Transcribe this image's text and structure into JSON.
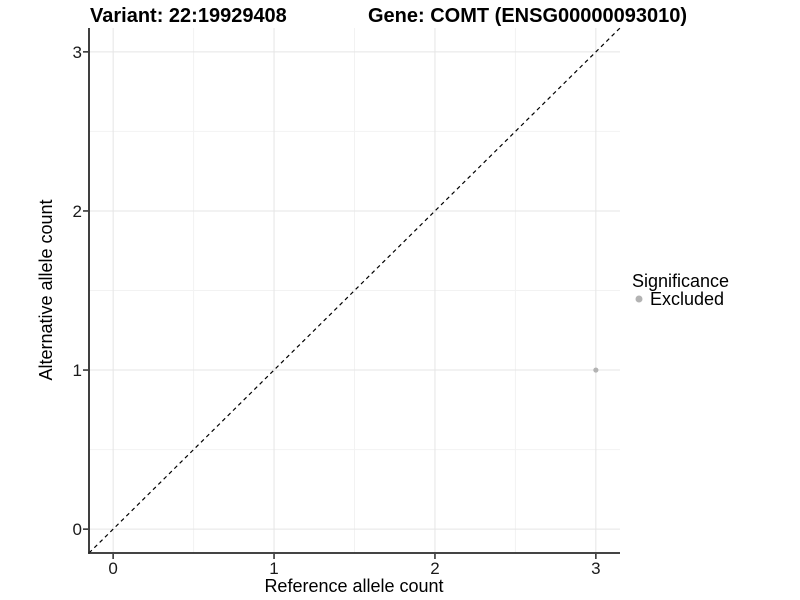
{
  "header": {
    "variant_title": "Variant: 22:19929408",
    "gene_title": "Gene: COMT (ENSG00000093010)"
  },
  "axes": {
    "x": {
      "label": "Reference allele count"
    },
    "y": {
      "label": "Alternative allele count"
    }
  },
  "legend": {
    "title": "Significance",
    "items": [
      {
        "label": "Excluded",
        "color": "#b3b3b3",
        "marker": "circle-icon"
      }
    ]
  },
  "colors": {
    "background": "#ffffff",
    "grid_major": "#e5e5e5",
    "grid_minor": "#f2f2f2",
    "axis_line": "#2a2a2a",
    "text": "#000000",
    "identity_line": "#000000",
    "excluded_point": "#b3b3b3"
  },
  "chart_data": {
    "type": "scatter",
    "title": "Variant: 22:19929408 | Gene: COMT (ENSG00000093010)",
    "xlabel": "Reference allele count",
    "ylabel": "Alternative allele count",
    "xlim": [
      -0.15,
      3.15
    ],
    "ylim": [
      -0.15,
      3.15
    ],
    "x_ticks": {
      "values": [
        0,
        1,
        2,
        3
      ],
      "labels": [
        "0",
        "1",
        "2",
        "3"
      ]
    },
    "y_ticks": {
      "values": [
        0,
        1,
        2,
        3
      ],
      "labels": [
        "0",
        "1",
        "2",
        "3"
      ]
    },
    "grid": {
      "major": [
        0,
        1,
        2,
        3
      ],
      "minor": [
        0.5,
        1.5,
        2.5
      ],
      "on": true
    },
    "series": [
      {
        "name": "Excluded",
        "significance": "Excluded",
        "color": "#b3b3b3",
        "point_radius": 2.6,
        "points": [
          {
            "x": 3,
            "y": 1
          }
        ]
      }
    ],
    "reference_line": {
      "style": "dashed",
      "slope": 1,
      "intercept": 0,
      "from": {
        "x": -0.15,
        "y": -0.15
      },
      "to": {
        "x": 3.15,
        "y": 3.15
      },
      "color": "#000000"
    },
    "legend_position": "right"
  }
}
